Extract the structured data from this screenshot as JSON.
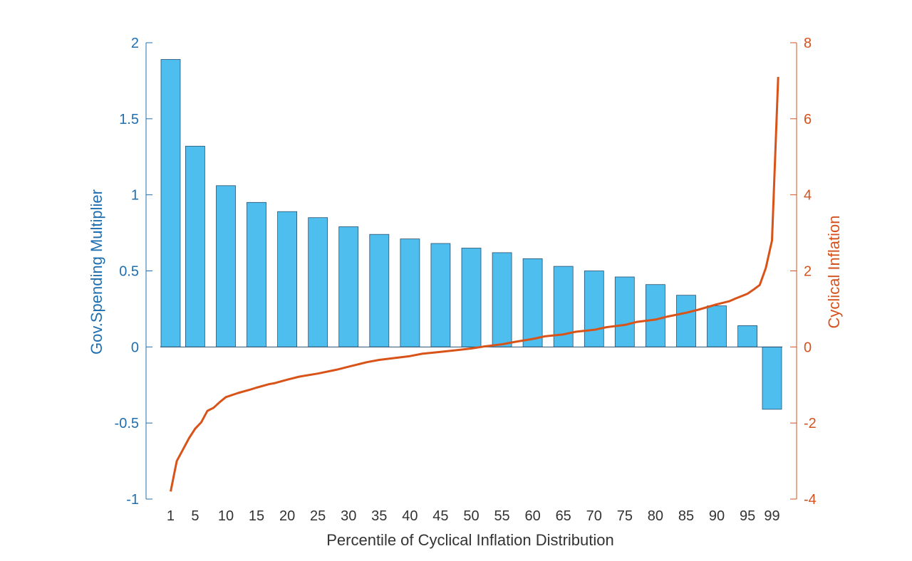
{
  "chart_data": {
    "type": "bar+line",
    "title": "",
    "xlabel": "Percentile of Cyclical Inflation Distribution",
    "ylabel_left": "Gov.Spending Multiplier",
    "ylabel_right": "Cyclical Inflation",
    "ylim_left": [
      -1,
      2
    ],
    "ylim_right": [
      -4,
      8
    ],
    "yticks_left": [
      "-1",
      "-0.5",
      "0",
      "0.5",
      "1",
      "1.5",
      "2"
    ],
    "yticks_right": [
      "-4",
      "-2",
      "0",
      "2",
      "4",
      "6",
      "8"
    ],
    "xlim": [
      -3,
      103
    ],
    "x_tick_labels": [
      "1",
      "5",
      "10",
      "15",
      "20",
      "25",
      "30",
      "35",
      "40",
      "45",
      "50",
      "55",
      "60",
      "65",
      "70",
      "75",
      "80",
      "85",
      "90",
      "95",
      "99"
    ],
    "grid": false,
    "bars": {
      "name": "Gov.Spending Multiplier",
      "color": "#4dbeee",
      "edge_color": "#2a4f6e",
      "axis": "left",
      "categories": [
        "1",
        "5",
        "10",
        "15",
        "20",
        "25",
        "30",
        "35",
        "40",
        "45",
        "50",
        "55",
        "60",
        "65",
        "70",
        "75",
        "80",
        "85",
        "90",
        "95",
        "99"
      ],
      "x": [
        1,
        5,
        10,
        15,
        20,
        25,
        30,
        35,
        40,
        45,
        50,
        55,
        60,
        65,
        70,
        75,
        80,
        85,
        90,
        95,
        99
      ],
      "values": [
        1.89,
        1.32,
        1.06,
        0.95,
        0.89,
        0.85,
        0.79,
        0.74,
        0.71,
        0.68,
        0.65,
        0.62,
        0.58,
        0.53,
        0.5,
        0.46,
        0.41,
        0.34,
        0.27,
        0.14,
        -0.41
      ]
    },
    "line": {
      "name": "Cyclical Inflation",
      "color": "#d95319",
      "axis": "right",
      "x": [
        1,
        2,
        3,
        4,
        5,
        6,
        7,
        8,
        9,
        10,
        12,
        14,
        15,
        17,
        18,
        20,
        22,
        25,
        28,
        30,
        33,
        35,
        40,
        42,
        45,
        50,
        52,
        55,
        57,
        60,
        62,
        65,
        67,
        70,
        72,
        75,
        77,
        80,
        82,
        85,
        87,
        90,
        92,
        93,
        95,
        96,
        97,
        98,
        99,
        100
      ],
      "y": [
        -3.8,
        -3.0,
        -2.7,
        -2.4,
        -2.15,
        -1.98,
        -1.68,
        -1.6,
        -1.45,
        -1.32,
        -1.21,
        -1.12,
        -1.07,
        -0.98,
        -0.95,
        -0.86,
        -0.78,
        -0.7,
        -0.6,
        -0.52,
        -0.4,
        -0.34,
        -0.24,
        -0.18,
        -0.13,
        -0.04,
        0.01,
        0.07,
        0.13,
        0.21,
        0.28,
        0.33,
        0.4,
        0.45,
        0.52,
        0.58,
        0.66,
        0.72,
        0.8,
        0.9,
        0.98,
        1.12,
        1.2,
        1.27,
        1.4,
        1.51,
        1.63,
        2.08,
        2.8,
        7.1
      ]
    }
  }
}
